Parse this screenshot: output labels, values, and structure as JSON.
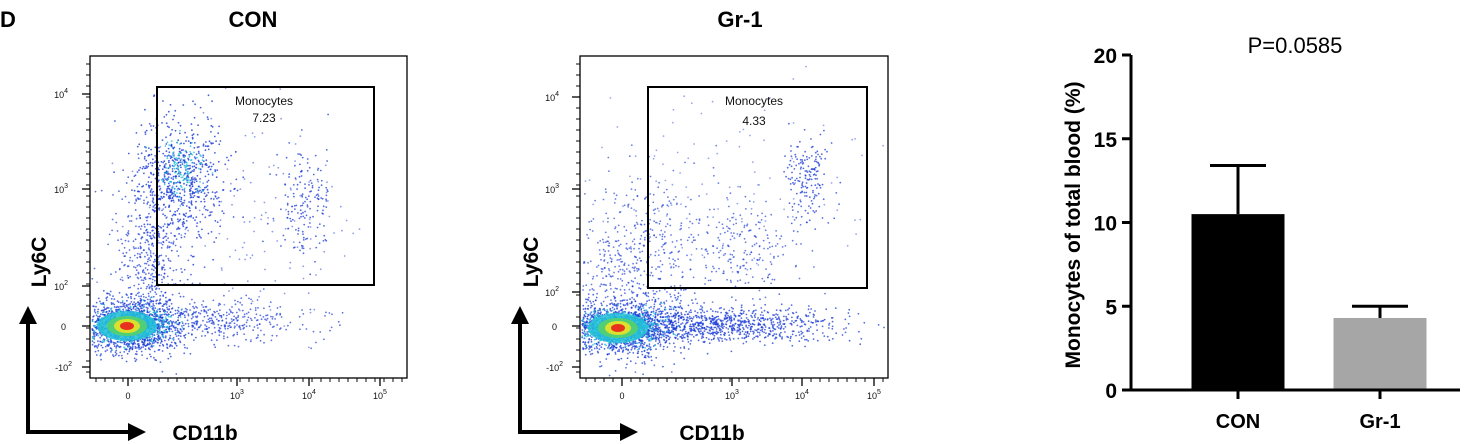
{
  "figure": {
    "panel_letter": "D",
    "colors": {
      "axis": "#000000",
      "density_low": "#1a3bd6",
      "density_mid": "#22c0d8",
      "density_high": "#e2e02a",
      "density_peak": "#e8321e",
      "bar_con": "#000000",
      "bar_gr1": "#a6a6a6"
    }
  },
  "chart_data": [
    {
      "type": "scatter",
      "title": "CON",
      "xlabel": "CD11b",
      "ylabel": "Ly6C",
      "x_ticks": [
        "0",
        "10",
        "10",
        "10"
      ],
      "x_tick_exps": [
        "",
        "3",
        "4",
        "5"
      ],
      "y_ticks": [
        "-10",
        "0",
        "10",
        "10",
        "10"
      ],
      "y_tick_exps": [
        "2",
        "",
        "2",
        "3",
        "4"
      ],
      "gate": {
        "name": "Monocytes",
        "value": "7.23"
      },
      "populations": [
        {
          "x": 0.0,
          "y": 0.0,
          "density": "very high"
        },
        {
          "x": 300,
          "y": 1500,
          "density": "high"
        },
        {
          "x": 10000,
          "y": 800,
          "density": "low"
        }
      ]
    },
    {
      "type": "scatter",
      "title": "Gr-1",
      "xlabel": "CD11b",
      "ylabel": "Ly6C",
      "x_ticks": [
        "0",
        "10",
        "10",
        "10"
      ],
      "x_tick_exps": [
        "",
        "3",
        "4",
        "5"
      ],
      "y_ticks": [
        "-10",
        "0",
        "10",
        "10",
        "10"
      ],
      "y_tick_exps": [
        "2",
        "",
        "2",
        "3",
        "4"
      ],
      "gate": {
        "name": "Monocytes",
        "value": "4.33"
      },
      "populations": [
        {
          "x": 0.0,
          "y": 0.0,
          "density": "very high"
        },
        {
          "x": 2000,
          "y": 300,
          "density": "medium"
        },
        {
          "x": 15000,
          "y": 1000,
          "density": "medium"
        }
      ]
    },
    {
      "type": "bar",
      "categories": [
        "CON",
        "Gr-1"
      ],
      "values": [
        10.5,
        4.3
      ],
      "errors": [
        2.9,
        0.7
      ],
      "ylabel": "Monocytes of total blood (%)",
      "ylim": [
        0,
        20
      ],
      "y_ticks": [
        0,
        5,
        10,
        15,
        20
      ],
      "annotation": "P=0.0585"
    }
  ]
}
